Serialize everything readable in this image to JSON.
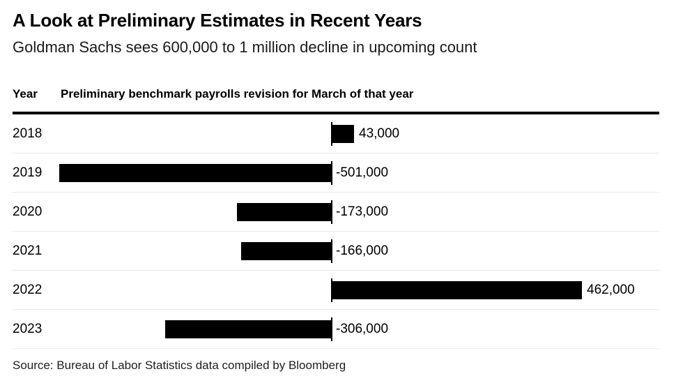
{
  "header": {
    "title": "A Look at Preliminary Estimates in Recent Years",
    "subtitle": "Goldman Sachs sees 600,000 to 1 million decline in upcoming count"
  },
  "table_header": {
    "year_label": "Year",
    "value_label": "Preliminary benchmark payrolls revision for March of that year"
  },
  "chart_data": {
    "type": "bar",
    "orientation": "horizontal",
    "title": "A Look at Preliminary Estimates in Recent Years",
    "subtitle": "Goldman Sachs sees 600,000 to 1 million decline in upcoming count",
    "xlabel": "Preliminary benchmark payrolls revision for March of that year",
    "ylabel": "Year",
    "categories": [
      "2018",
      "2019",
      "2020",
      "2021",
      "2022",
      "2023"
    ],
    "values": [
      43000,
      -501000,
      -173000,
      -166000,
      462000,
      -306000
    ],
    "value_labels": [
      "43,000",
      "-501,000",
      "-173,000",
      "-166,000",
      "462,000",
      "-306,000"
    ],
    "xlim": [
      -520000,
      520000
    ],
    "grid": false,
    "legend": "none",
    "bar_color": "#000000",
    "zero_axis_color": "#000000",
    "row_separator_color": "#e9e9e9"
  },
  "footer": {
    "source": "Source: Bureau of Labor Statistics data compiled by Bloomberg"
  }
}
